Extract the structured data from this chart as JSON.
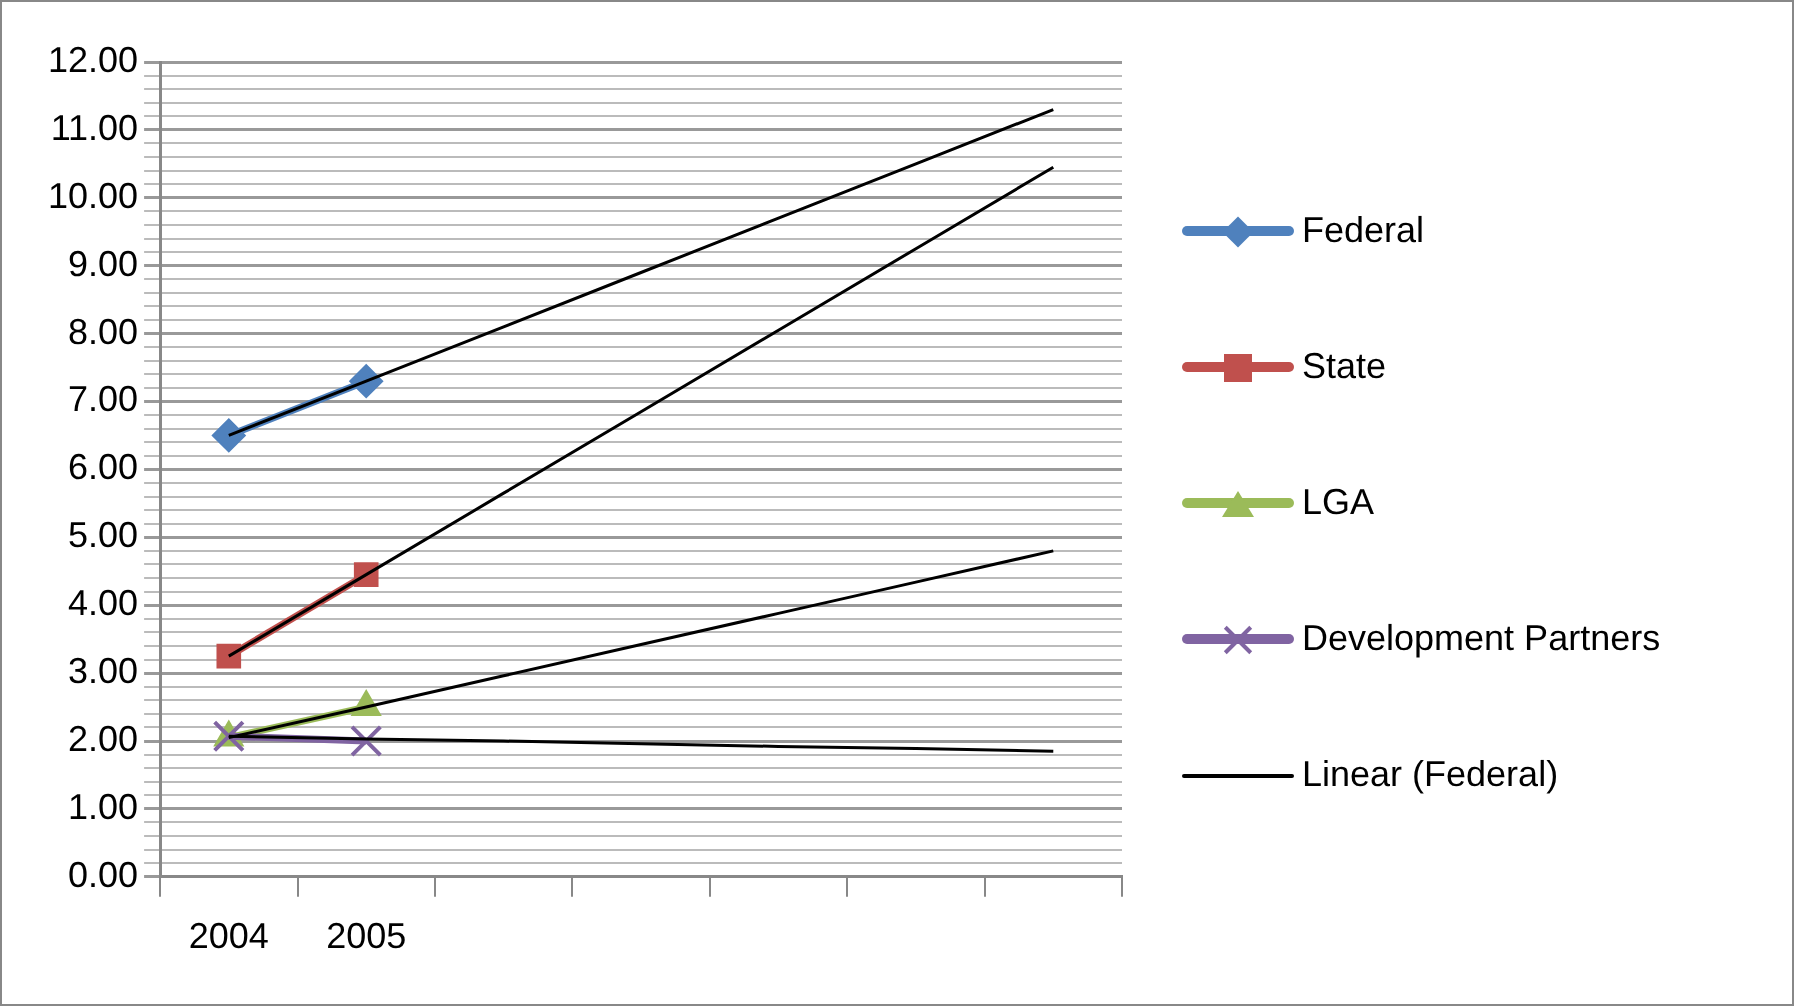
{
  "chart_data": {
    "type": "line",
    "categories": [
      "2004",
      "2005",
      null,
      null,
      null,
      null,
      null
    ],
    "series": [
      {
        "name": "Federal",
        "color": "#4f81bd",
        "marker": "diamond",
        "values": [
          6.5,
          7.3,
          null,
          null,
          null,
          null,
          null
        ]
      },
      {
        "name": "State",
        "color": "#c0504d",
        "marker": "square",
        "values": [
          3.25,
          4.45,
          null,
          null,
          null,
          null,
          null
        ]
      },
      {
        "name": "LGA",
        "color": "#9bbb59",
        "marker": "triangle",
        "values": [
          2.05,
          2.5,
          null,
          null,
          null,
          null,
          null
        ]
      },
      {
        "name": "Development Partners",
        "color": "#8064a2",
        "marker": "cross",
        "values": [
          2.07,
          2.0,
          null,
          null,
          null,
          null,
          null
        ]
      },
      {
        "name": "Linear (Federal)",
        "color": "#000000",
        "marker": "none",
        "values": [
          6.5,
          7.3,
          8.1,
          8.9,
          9.7,
          10.5,
          11.3
        ]
      },
      {
        "color": "#000000",
        "marker": "none",
        "values": [
          3.25,
          4.45,
          5.65,
          6.85,
          8.05,
          9.25,
          10.45
        ]
      },
      {
        "color": "#000000",
        "marker": "none",
        "values": [
          2.05,
          2.5,
          2.96,
          3.42,
          3.88,
          4.34,
          4.8
        ]
      },
      {
        "color": "#000000",
        "marker": "none",
        "values": [
          2.07,
          2.03,
          2.0,
          1.96,
          1.92,
          1.89,
          1.85
        ]
      }
    ],
    "ylim": [
      0,
      12
    ],
    "yticks": [
      {
        "value": 0,
        "label": "0.00"
      },
      {
        "value": 0.2,
        "label": null
      },
      {
        "value": 0.4,
        "label": null
      },
      {
        "value": 0.6,
        "label": null
      },
      {
        "value": 0.8,
        "label": null
      },
      {
        "value": 1,
        "label": "1.00"
      },
      {
        "value": 1.2,
        "label": null
      },
      {
        "value": 1.4,
        "label": null
      },
      {
        "value": 1.6,
        "label": null
      },
      {
        "value": 1.8,
        "label": null
      },
      {
        "value": 2,
        "label": "2.00"
      },
      {
        "value": 2.2,
        "label": null
      },
      {
        "value": 2.4,
        "label": null
      },
      {
        "value": 2.6,
        "label": null
      },
      {
        "value": 2.8,
        "label": null
      },
      {
        "value": 3,
        "label": "3.00"
      },
      {
        "value": 3.2,
        "label": null
      },
      {
        "value": 3.4,
        "label": null
      },
      {
        "value": 3.6,
        "label": null
      },
      {
        "value": 3.8,
        "label": null
      },
      {
        "value": 4,
        "label": "4.00"
      },
      {
        "value": 4.2,
        "label": null
      },
      {
        "value": 4.4,
        "label": null
      },
      {
        "value": 4.6,
        "label": null
      },
      {
        "value": 4.8,
        "label": null
      },
      {
        "value": 5,
        "label": "5.00"
      },
      {
        "value": 5.2,
        "label": null
      },
      {
        "value": 5.4,
        "label": null
      },
      {
        "value": 5.6,
        "label": null
      },
      {
        "value": 5.8,
        "label": null
      },
      {
        "value": 6,
        "label": "6.00"
      },
      {
        "value": 6.2,
        "label": null
      },
      {
        "value": 6.4,
        "label": null
      },
      {
        "value": 6.6,
        "label": null
      },
      {
        "value": 6.8,
        "label": null
      },
      {
        "value": 7,
        "label": "7.00"
      },
      {
        "value": 7.2,
        "label": null
      },
      {
        "value": 7.4,
        "label": null
      },
      {
        "value": 7.6,
        "label": null
      },
      {
        "value": 7.8,
        "label": null
      },
      {
        "value": 8,
        "label": "8.00"
      },
      {
        "value": 8.2,
        "label": null
      },
      {
        "value": 8.4,
        "label": null
      },
      {
        "value": 8.6,
        "label": null
      },
      {
        "value": 8.8,
        "label": null
      },
      {
        "value": 9,
        "label": "9.00"
      },
      {
        "value": 9.2,
        "label": null
      },
      {
        "value": 9.4,
        "label": null
      },
      {
        "value": 9.6,
        "label": null
      },
      {
        "value": 9.8,
        "label": null
      },
      {
        "value": 10,
        "label": "10.00"
      },
      {
        "value": 10.2,
        "label": null
      },
      {
        "value": 10.4,
        "label": null
      },
      {
        "value": 10.6,
        "label": null
      },
      {
        "value": 10.8,
        "label": null
      },
      {
        "value": 11,
        "label": "11.00"
      },
      {
        "value": 11.2,
        "label": null
      },
      {
        "value": 11.4,
        "label": null
      },
      {
        "value": 11.6,
        "label": null
      },
      {
        "value": 11.8,
        "label": null
      },
      {
        "value": 12,
        "label": "12.00"
      }
    ],
    "grid": "y",
    "legend": "right"
  }
}
